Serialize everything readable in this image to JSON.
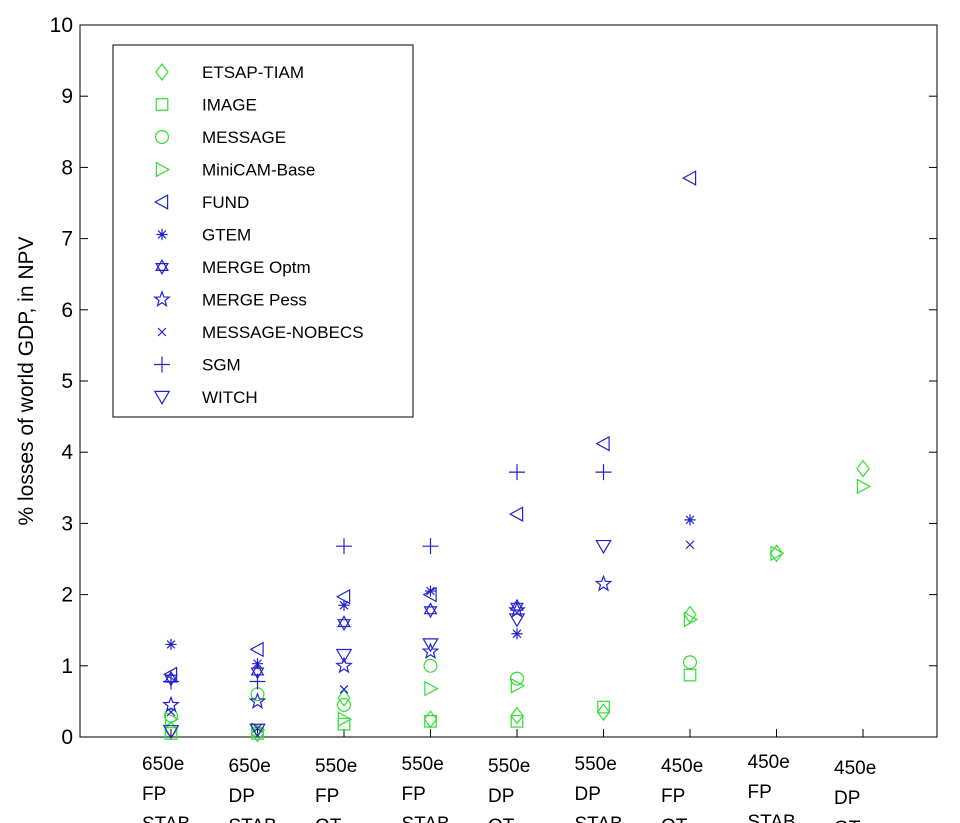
{
  "chart_data": {
    "type": "scatter",
    "title": "",
    "xlabel": "",
    "ylabel": "% losses of world GDP, in NPV",
    "ylim": [
      0,
      10
    ],
    "yticks": [
      0,
      1,
      2,
      3,
      4,
      5,
      6,
      7,
      8,
      9,
      10
    ],
    "grid": false,
    "legend_position": "top-left",
    "categories": [
      {
        "id": 1,
        "lines": [
          "650e",
          "FP",
          "STAB"
        ]
      },
      {
        "id": 2,
        "lines": [
          "650e",
          "DP",
          "STAB"
        ]
      },
      {
        "id": 3,
        "lines": [
          "550e",
          "FP",
          "OT"
        ]
      },
      {
        "id": 4,
        "lines": [
          "550e",
          "FP",
          "STAB"
        ]
      },
      {
        "id": 5,
        "lines": [
          "550e",
          "DP",
          "OT"
        ]
      },
      {
        "id": 6,
        "lines": [
          "550e",
          "DP",
          "STAB"
        ]
      },
      {
        "id": 7,
        "lines": [
          "450e",
          "FP",
          "OT"
        ]
      },
      {
        "id": 8,
        "lines": [
          "450e",
          "FP",
          "STAB"
        ]
      },
      {
        "id": 9,
        "lines": [
          "450e",
          "DP",
          "OT"
        ]
      }
    ],
    "series": [
      {
        "name": "ETSAP-TIAM",
        "marker": "diamond",
        "color": "#33dd33",
        "points": [
          [
            1,
            0.1
          ],
          [
            2,
            0.05
          ],
          [
            3,
            0.55
          ],
          [
            4,
            0.25
          ],
          [
            5,
            0.3
          ],
          [
            6,
            0.35
          ],
          [
            7,
            1.72
          ],
          [
            8,
            2.58
          ],
          [
            9,
            3.77
          ]
        ]
      },
      {
        "name": "IMAGE",
        "marker": "square",
        "color": "#33dd33",
        "points": [
          [
            1,
            0.05
          ],
          [
            2,
            0.05
          ],
          [
            3,
            0.18
          ],
          [
            4,
            0.22
          ],
          [
            5,
            0.22
          ],
          [
            6,
            0.42
          ],
          [
            7,
            0.87
          ]
        ]
      },
      {
        "name": "MESSAGE",
        "marker": "circle",
        "color": "#33dd33",
        "points": [
          [
            1,
            0.3
          ],
          [
            2,
            0.6
          ],
          [
            3,
            0.45
          ],
          [
            4,
            1.0
          ],
          [
            5,
            0.82
          ],
          [
            7,
            1.05
          ]
        ]
      },
      {
        "name": "MiniCAM-Base",
        "marker": "triangle-right",
        "color": "#33dd33",
        "points": [
          [
            1,
            0.25
          ],
          [
            2,
            0.1
          ],
          [
            3,
            0.25
          ],
          [
            4,
            0.68
          ],
          [
            5,
            0.72
          ],
          [
            7,
            1.65
          ],
          [
            8,
            2.58
          ],
          [
            9,
            3.52
          ]
        ]
      },
      {
        "name": "FUND",
        "marker": "triangle-left",
        "color": "#2222cc",
        "points": [
          [
            1,
            0.88
          ],
          [
            2,
            1.23
          ],
          [
            3,
            1.97
          ],
          [
            4,
            2.0
          ],
          [
            5,
            3.13
          ],
          [
            6,
            4.12
          ],
          [
            7,
            7.85
          ]
        ]
      },
      {
        "name": "GTEM",
        "marker": "asterisk",
        "color": "#2222cc",
        "points": [
          [
            1,
            1.3
          ],
          [
            2,
            1.03
          ],
          [
            3,
            1.85
          ],
          [
            4,
            2.05
          ],
          [
            5,
            1.45
          ],
          [
            7,
            3.05
          ]
        ]
      },
      {
        "name": "MERGE Optm",
        "marker": "hexagram",
        "color": "#2222cc",
        "points": [
          [
            1,
            0.82
          ],
          [
            2,
            0.92
          ],
          [
            3,
            1.6
          ],
          [
            4,
            1.78
          ],
          [
            5,
            1.83
          ]
        ]
      },
      {
        "name": "MERGE Pess",
        "marker": "pentagram",
        "color": "#2222cc",
        "points": [
          [
            1,
            0.45
          ],
          [
            2,
            0.5
          ],
          [
            3,
            1.0
          ],
          [
            4,
            1.2
          ],
          [
            5,
            1.78
          ],
          [
            6,
            2.15
          ]
        ]
      },
      {
        "name": "MESSAGE-NOBECS",
        "marker": "x",
        "color": "#2222cc",
        "points": [
          [
            1,
            0.35
          ],
          [
            2,
            0.12
          ],
          [
            3,
            0.67
          ],
          [
            7,
            2.7
          ]
        ]
      },
      {
        "name": "SGM",
        "marker": "plus",
        "color": "#2222cc",
        "points": [
          [
            1,
            0.78
          ],
          [
            2,
            0.78
          ],
          [
            3,
            2.68
          ],
          [
            4,
            2.68
          ],
          [
            5,
            3.72
          ],
          [
            6,
            3.72
          ]
        ]
      },
      {
        "name": "WITCH",
        "marker": "triangle-down",
        "color": "#2222cc",
        "points": [
          [
            1,
            0.08
          ],
          [
            2,
            0.1
          ],
          [
            3,
            1.15
          ],
          [
            4,
            1.3
          ],
          [
            5,
            1.65
          ],
          [
            6,
            2.68
          ]
        ]
      }
    ]
  }
}
